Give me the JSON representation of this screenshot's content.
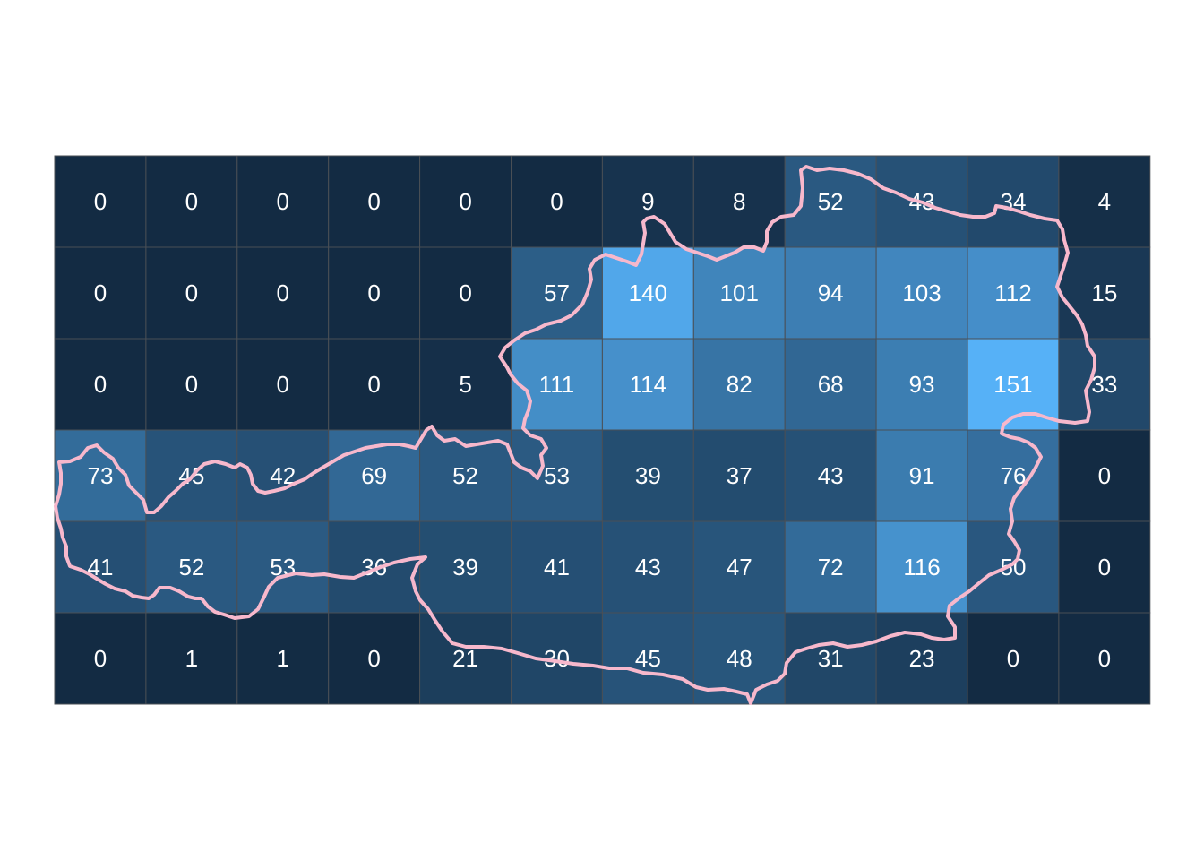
{
  "chart_data": {
    "type": "heatmap",
    "title": "",
    "xlabel": "",
    "ylabel": "",
    "grid": true,
    "legend": "none",
    "rows": 6,
    "cols": 12,
    "values": [
      [
        0,
        0,
        0,
        0,
        0,
        0,
        9,
        8,
        52,
        43,
        34,
        4
      ],
      [
        0,
        0,
        0,
        0,
        0,
        57,
        140,
        101,
        94,
        103,
        112,
        15
      ],
      [
        0,
        0,
        0,
        0,
        5,
        111,
        114,
        82,
        68,
        93,
        151,
        33
      ],
      [
        73,
        45,
        42,
        69,
        52,
        53,
        39,
        37,
        43,
        91,
        76,
        0
      ],
      [
        41,
        52,
        53,
        36,
        39,
        41,
        43,
        47,
        72,
        116,
        50,
        0
      ],
      [
        0,
        1,
        1,
        0,
        21,
        30,
        45,
        48,
        31,
        23,
        0,
        0
      ]
    ],
    "color_scale": {
      "low": "#132B43",
      "high": "#56B1F7",
      "min": 0,
      "max": 151
    },
    "cell_border_color": "#4a4f55",
    "label_color": "#ffffff",
    "outline_color": "#F7B8CC"
  }
}
